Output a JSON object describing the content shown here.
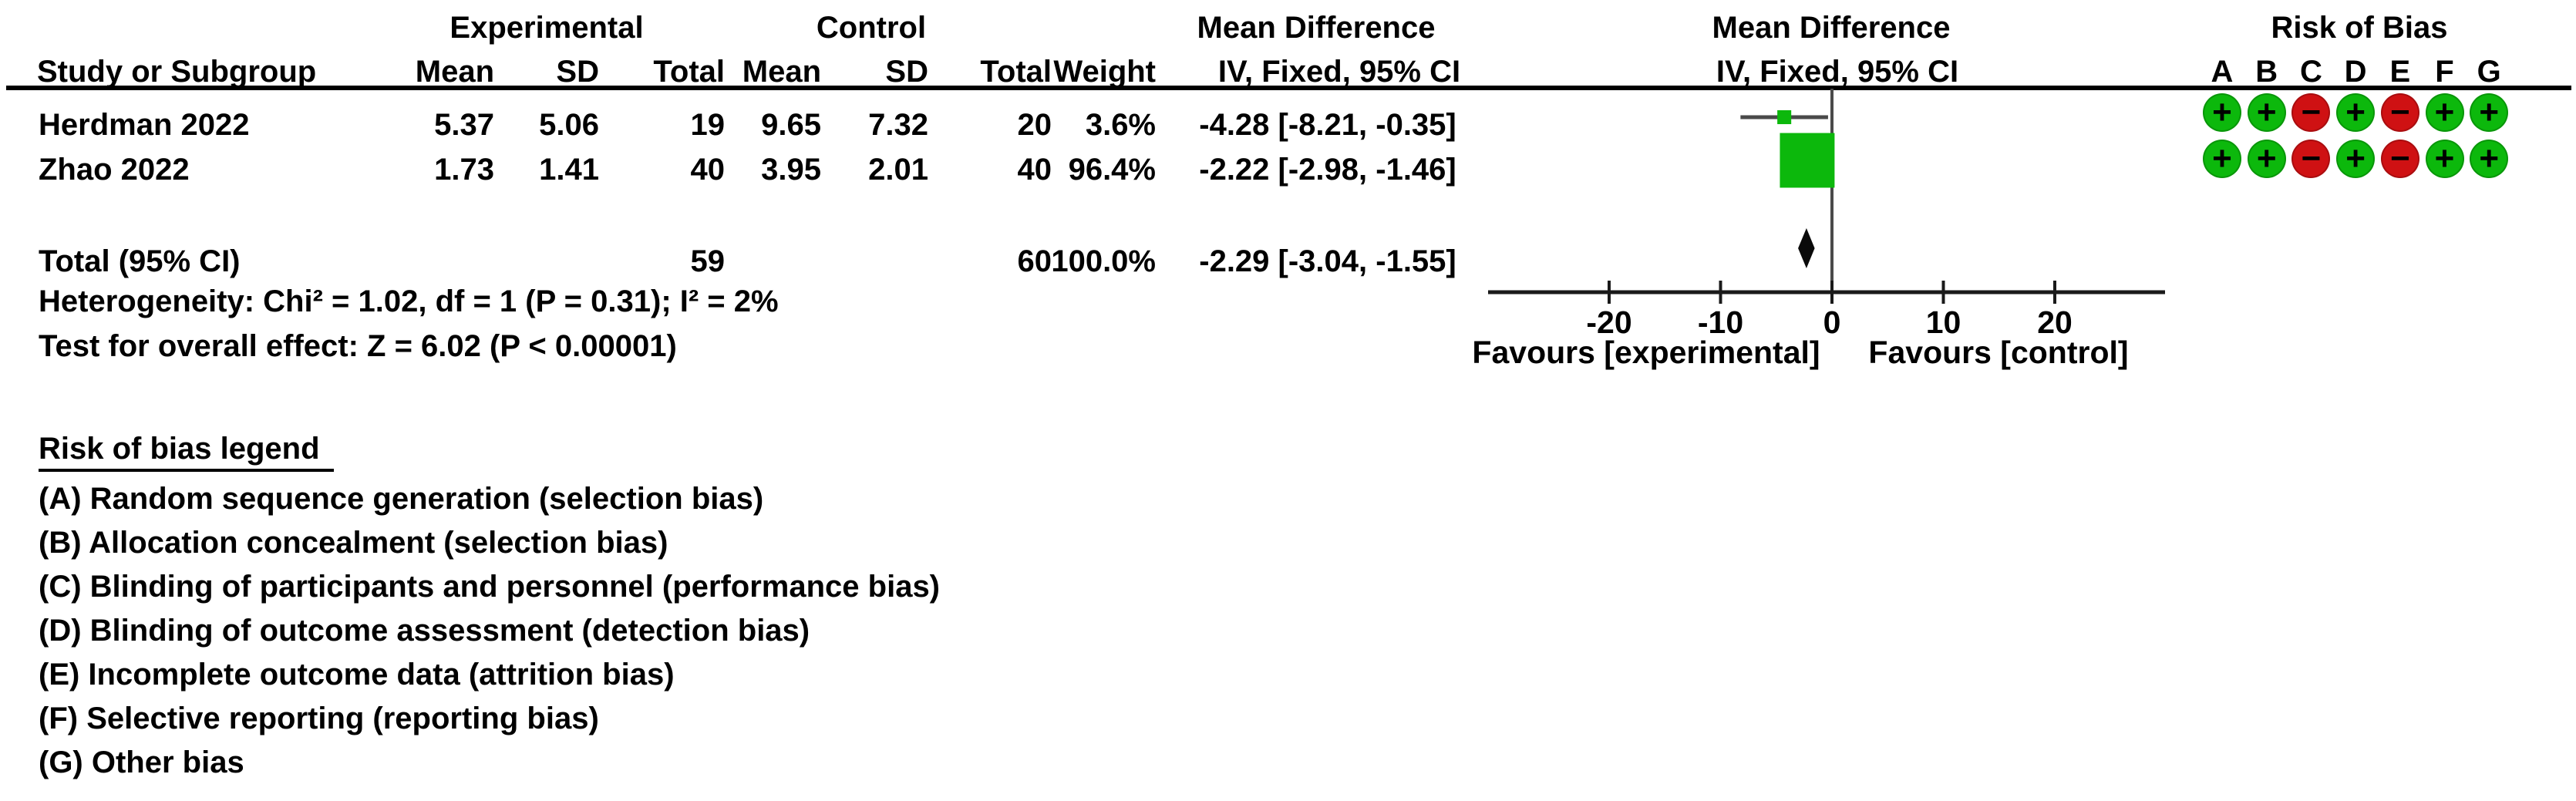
{
  "table": {
    "col_groups": {
      "experimental": "Experimental",
      "control": "Control"
    },
    "headers": {
      "study": "Study or Subgroup",
      "mean": "Mean",
      "sd": "SD",
      "total": "Total",
      "weight": "Weight",
      "md": "Mean Difference",
      "iv": "IV, Fixed, 95% CI"
    },
    "rows": [
      {
        "study": "Herdman 2022",
        "mean_e": "5.37",
        "sd_e": "5.06",
        "total_e": "19",
        "mean_c": "9.65",
        "sd_c": "7.32",
        "total_c": "20",
        "weight": "3.6%",
        "ci": "-4.28 [-8.21, -0.35]"
      },
      {
        "study": "Zhao 2022",
        "mean_e": "1.73",
        "sd_e": "1.41",
        "total_e": "40",
        "mean_c": "3.95",
        "sd_c": "2.01",
        "total_c": "40",
        "weight": "96.4%",
        "ci": "-2.22 [-2.98, -1.46]"
      }
    ],
    "total_row": {
      "label": "Total (95% CI)",
      "total_e": "59",
      "total_c": "60",
      "weight": "100.0%",
      "ci": "-2.29 [-3.04, -1.55]"
    }
  },
  "stats": {
    "heterogeneity": "Heterogeneity: Chi² = 1.02, df = 1 (P = 0.31); I² = 2%",
    "overall_effect": "Test for overall effect: Z = 6.02 (P < 0.00001)"
  },
  "chart_data": {
    "type": "forest",
    "effect_measure": "Mean Difference",
    "method": "IV, Fixed, 95% CI",
    "studies": [
      {
        "name": "Herdman 2022",
        "md": -4.28,
        "ci_low": -8.21,
        "ci_high": -0.35,
        "weight_pct": 3.6
      },
      {
        "name": "Zhao 2022",
        "md": -2.22,
        "ci_low": -2.98,
        "ci_high": -1.46,
        "weight_pct": 96.4
      }
    ],
    "total": {
      "md": -2.29,
      "ci_low": -3.04,
      "ci_high": -1.55,
      "weight_pct": 100.0
    },
    "x_ticks": [
      -20,
      -10,
      0,
      10,
      20
    ],
    "x_range": [
      -30.9,
      29.9
    ],
    "xlabel_left": "Favours [experimental]",
    "xlabel_right": "Favours [control]",
    "grid": false,
    "zero_line": true
  },
  "rob": {
    "title": "Risk of Bias",
    "columns": [
      "A",
      "B",
      "C",
      "D",
      "E",
      "F",
      "G"
    ],
    "studies": [
      {
        "study": "Herdman 2022",
        "judgements": [
          "+",
          "+",
          "-",
          "+",
          "-",
          "+",
          "+"
        ]
      },
      {
        "study": "Zhao 2022",
        "judgements": [
          "+",
          "+",
          "-",
          "+",
          "-",
          "+",
          "+"
        ]
      }
    ]
  },
  "legend": {
    "title": "Risk of bias legend",
    "items": [
      "(A) Random sequence generation (selection bias)",
      "(B) Allocation concealment (selection bias)",
      "(C) Blinding of participants and personnel (performance bias)",
      "(D) Blinding of outcome assessment (detection bias)",
      "(E) Incomplete outcome data (attrition bias)",
      "(F) Selective reporting (reporting bias)",
      "(G) Other bias"
    ]
  },
  "colors": {
    "low_risk_green": "#0cb80c",
    "high_risk_red": "#cf1113",
    "square_green": "#0cb80c",
    "ci_line": "#4a4a4a",
    "axis_black": "#1a1a1a",
    "diamond_black": "#0a0a0a"
  }
}
